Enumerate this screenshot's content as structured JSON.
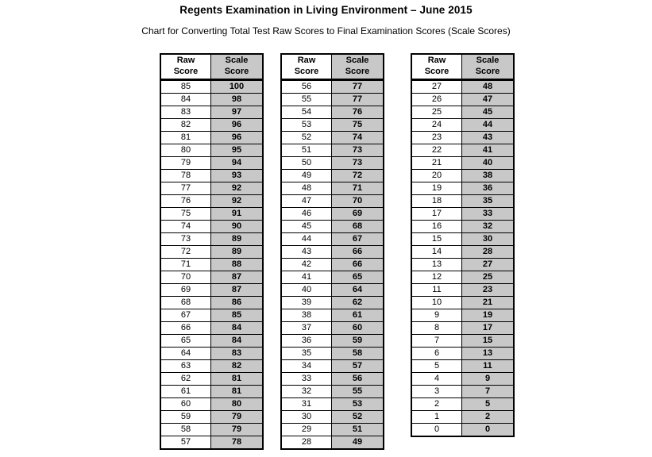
{
  "page": {
    "title": "Regents Examination in Living Environment – June 2015",
    "subtitle": "Chart for Converting Total Test Raw Scores to Final Examination Scores (Scale Scores)"
  },
  "table_headers": {
    "raw": [
      "Raw",
      "Score"
    ],
    "scale": [
      "Scale",
      "Score"
    ]
  },
  "colors": {
    "scale_column_bg": "#c8c8c8",
    "border": "#000000",
    "text": "#000000",
    "page_bg": "#ffffff"
  },
  "tables": [
    {
      "rows": [
        [
          85,
          100
        ],
        [
          84,
          98
        ],
        [
          83,
          97
        ],
        [
          82,
          96
        ],
        [
          81,
          96
        ],
        [
          80,
          95
        ],
        [
          79,
          94
        ],
        [
          78,
          93
        ],
        [
          77,
          92
        ],
        [
          76,
          92
        ],
        [
          75,
          91
        ],
        [
          74,
          90
        ],
        [
          73,
          89
        ],
        [
          72,
          89
        ],
        [
          71,
          88
        ],
        [
          70,
          87
        ],
        [
          69,
          87
        ],
        [
          68,
          86
        ],
        [
          67,
          85
        ],
        [
          66,
          84
        ],
        [
          65,
          84
        ],
        [
          64,
          83
        ],
        [
          63,
          82
        ],
        [
          62,
          81
        ],
        [
          61,
          81
        ],
        [
          60,
          80
        ],
        [
          59,
          79
        ],
        [
          58,
          79
        ],
        [
          57,
          78
        ]
      ]
    },
    {
      "rows": [
        [
          56,
          77
        ],
        [
          55,
          77
        ],
        [
          54,
          76
        ],
        [
          53,
          75
        ],
        [
          52,
          74
        ],
        [
          51,
          73
        ],
        [
          50,
          73
        ],
        [
          49,
          72
        ],
        [
          48,
          71
        ],
        [
          47,
          70
        ],
        [
          46,
          69
        ],
        [
          45,
          68
        ],
        [
          44,
          67
        ],
        [
          43,
          66
        ],
        [
          42,
          66
        ],
        [
          41,
          65
        ],
        [
          40,
          64
        ],
        [
          39,
          62
        ],
        [
          38,
          61
        ],
        [
          37,
          60
        ],
        [
          36,
          59
        ],
        [
          35,
          58
        ],
        [
          34,
          57
        ],
        [
          33,
          56
        ],
        [
          32,
          55
        ],
        [
          31,
          53
        ],
        [
          30,
          52
        ],
        [
          29,
          51
        ],
        [
          28,
          49
        ]
      ]
    },
    {
      "rows": [
        [
          27,
          48
        ],
        [
          26,
          47
        ],
        [
          25,
          45
        ],
        [
          24,
          44
        ],
        [
          23,
          43
        ],
        [
          22,
          41
        ],
        [
          21,
          40
        ],
        [
          20,
          38
        ],
        [
          19,
          36
        ],
        [
          18,
          35
        ],
        [
          17,
          33
        ],
        [
          16,
          32
        ],
        [
          15,
          30
        ],
        [
          14,
          28
        ],
        [
          13,
          27
        ],
        [
          12,
          25
        ],
        [
          11,
          23
        ],
        [
          10,
          21
        ],
        [
          9,
          19
        ],
        [
          8,
          17
        ],
        [
          7,
          15
        ],
        [
          6,
          13
        ],
        [
          5,
          11
        ],
        [
          4,
          9
        ],
        [
          3,
          7
        ],
        [
          2,
          5
        ],
        [
          1,
          2
        ],
        [
          0,
          0
        ]
      ]
    }
  ]
}
